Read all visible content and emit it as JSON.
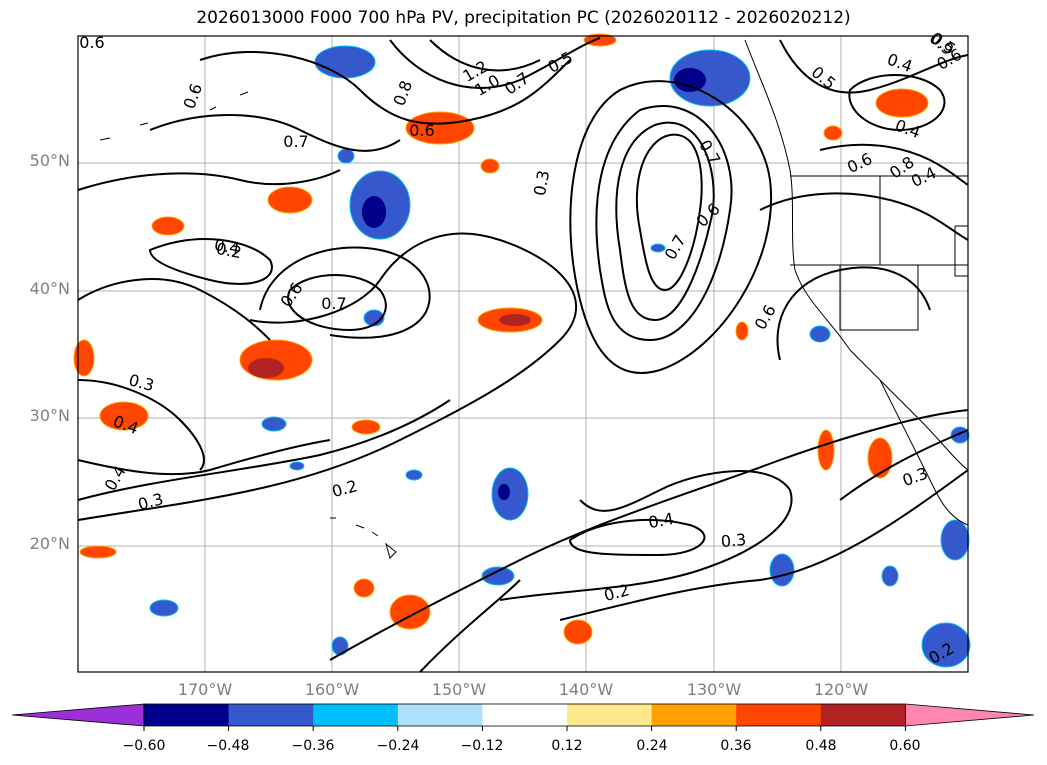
{
  "title": "2026013000 F000 700 hPa PV, precipitation PC (2026020112 - 2026020212)",
  "lat_labels": [
    "50°N",
    "40°N",
    "30°N",
    "20°N"
  ],
  "lon_labels": [
    "170°W",
    "160°W",
    "150°W",
    "140°W",
    "130°W",
    "120°W"
  ],
  "colorbar": {
    "ticks": [
      "−0.60",
      "−0.48",
      "−0.36",
      "−0.24",
      "−0.12",
      "0.12",
      "0.24",
      "0.36",
      "0.48",
      "0.60"
    ],
    "colors": [
      "#9b30d9",
      "#00008b",
      "#3558cc",
      "#00bfff",
      "#ade1fb",
      "#ffffff",
      "#ffe98a",
      "#ffa200",
      "#ff4500",
      "#b22222",
      "#ff86b0"
    ]
  },
  "contour_labels": [
    "0.6",
    "0.6",
    "0.8",
    "0.7",
    "1.2",
    "1.0",
    "0.7",
    "0.5",
    "0.6",
    "0.7",
    "0.6",
    "0.4",
    "0.6",
    "0.7",
    "0.3",
    "0.3",
    "0.4",
    "0.4",
    "0.3",
    "0.2",
    "0.4",
    "0.3",
    "0.2",
    "0.8",
    "0.7",
    "0.6",
    "0.2",
    "0.5",
    "0.9",
    "0.4",
    "0.4",
    "0.6",
    "0.5",
    "0.6",
    "0.4",
    "0.3",
    "0.2"
  ],
  "colors": {
    "contour": "#000000",
    "grid": "#b0b0b0",
    "tick_label": "#808080"
  }
}
